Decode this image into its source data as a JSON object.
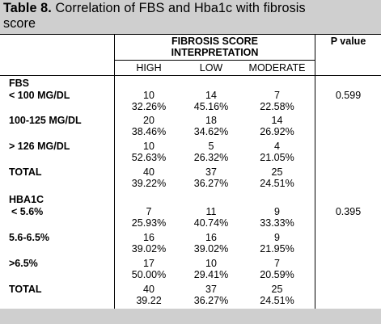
{
  "table": {
    "number": "Table 8.",
    "title_rest": "Correlation of FBS and Hba1c with fibrosis",
    "title_line2": "score",
    "header": {
      "group_line1": "FIBROSIS SCORE",
      "group_line2": "INTERPRETATION",
      "p_value": "P value",
      "col_high": "HIGH",
      "col_low": "LOW",
      "col_moderate": "MODERATE"
    },
    "fbs": {
      "label": "FBS",
      "p": "0.599",
      "rows": [
        {
          "label": "< 100 MG/DL",
          "high": "10",
          "high_pct": "32.26%",
          "low": "14",
          "low_pct": "45.16%",
          "moderate": "7",
          "moderate_pct": "22.58%"
        },
        {
          "label": "100-125 MG/DL",
          "high": "20",
          "high_pct": "38.46%",
          "low": "18",
          "low_pct": "34.62%",
          "moderate": "14",
          "moderate_pct": "26.92%"
        },
        {
          "label": "> 126 MG/DL",
          "high": "10",
          "high_pct": "52.63%",
          "low": "5",
          "low_pct": "26.32%",
          "moderate": "4",
          "moderate_pct": "21.05%"
        },
        {
          "label": "TOTAL",
          "high": "40",
          "high_pct": "39.22%",
          "low": "37",
          "low_pct": "36.27%",
          "moderate": "25",
          "moderate_pct": "24.51%"
        }
      ]
    },
    "hba1c": {
      "label": "HBA1C",
      "p": "0.395",
      "rows": [
        {
          "label": "< 5.6%",
          "high": "7",
          "high_pct": "25.93%",
          "low": "11",
          "low_pct": "40.74%",
          "moderate": "9",
          "moderate_pct": "33.33%"
        },
        {
          "label": "5.6-6.5%",
          "high": "16",
          "high_pct": "39.02%",
          "low": "16",
          "low_pct": "39.02%",
          "moderate": "9",
          "moderate_pct": "21.95%"
        },
        {
          "label": ">6.5%",
          "high": "17",
          "high_pct": "50.00%",
          "low": "10",
          "low_pct": "29.41%",
          "moderate": "7",
          "moderate_pct": "20.59%"
        },
        {
          "label": "TOTAL",
          "high": "40",
          "high_pct": "39.22",
          "low": "37",
          "low_pct": "36.27%",
          "moderate": "25",
          "moderate_pct": "24.51%"
        }
      ]
    }
  }
}
